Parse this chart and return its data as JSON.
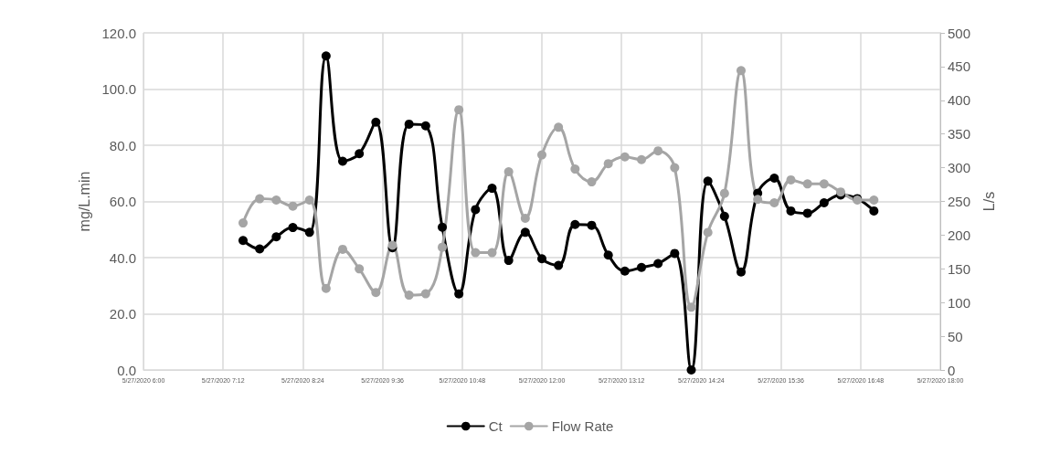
{
  "chart_data": {
    "type": "line",
    "ylabel": "mg/L.min",
    "y2label": "L/s",
    "x": [
      "2020-05-27T07:30",
      "2020-05-27T07:45",
      "2020-05-27T08:00",
      "2020-05-27T08:15",
      "2020-05-27T08:30",
      "2020-05-27T08:45",
      "2020-05-27T09:00",
      "2020-05-27T09:15",
      "2020-05-27T09:30",
      "2020-05-27T09:45",
      "2020-05-27T10:00",
      "2020-05-27T10:15",
      "2020-05-27T10:30",
      "2020-05-27T10:45",
      "2020-05-27T11:00",
      "2020-05-27T11:15",
      "2020-05-27T11:30",
      "2020-05-27T11:45",
      "2020-05-27T12:00",
      "2020-05-27T12:15",
      "2020-05-27T12:30",
      "2020-05-27T12:45",
      "2020-05-27T13:00",
      "2020-05-27T13:15",
      "2020-05-27T13:30",
      "2020-05-27T13:45",
      "2020-05-27T14:00",
      "2020-05-27T14:15",
      "2020-05-27T14:30",
      "2020-05-27T14:45",
      "2020-05-27T15:00",
      "2020-05-27T15:15",
      "2020-05-27T15:30",
      "2020-05-27T15:45",
      "2020-05-27T16:00",
      "2020-05-27T16:15",
      "2020-05-27T16:30",
      "2020-05-27T16:45",
      "2020-05-27T17:00"
    ],
    "series": [
      {
        "name": "Ct",
        "color": "#000000",
        "values": [
          46.1,
          43.1,
          47.4,
          50.7,
          49.0,
          111.8,
          74.3,
          77.0,
          88.2,
          43.5,
          87.5,
          86.9,
          50.8,
          27.1,
          57.1,
          64.7,
          39.0,
          49.0,
          39.6,
          37.2,
          51.8,
          51.5,
          40.9,
          35.2,
          36.5,
          37.9,
          41.5,
          0,
          67.2,
          54.7,
          34.9,
          62.9,
          68.3,
          56.6,
          55.8,
          59.5,
          62.3,
          61.0,
          56.6
        ]
      },
      {
        "name": "Flow Rate",
        "color": "#a5a5a5",
        "axis": "y2",
        "values": [
          218,
          254,
          252,
          243,
          252,
          121,
          179,
          150,
          115,
          185,
          111,
          113,
          182,
          386,
          174,
          174,
          294,
          225,
          319,
          360,
          298,
          279,
          306,
          316,
          312,
          325,
          300,
          93,
          204,
          262,
          444,
          253,
          248,
          282,
          276,
          276,
          264,
          252,
          252
        ]
      }
    ],
    "xlim": [
      "2020-05-27T06:00",
      "2020-05-27T18:00"
    ],
    "xticks": [
      {
        "value": "2020-05-27T06:00",
        "label": "5/27/2020 6:00"
      },
      {
        "value": "2020-05-27T07:12",
        "label": "5/27/2020 7:12"
      },
      {
        "value": "2020-05-27T08:24",
        "label": "5/27/2020 8:24"
      },
      {
        "value": "2020-05-27T09:36",
        "label": "5/27/2020 9:36"
      },
      {
        "value": "2020-05-27T10:48",
        "label": "5/27/2020 10:48"
      },
      {
        "value": "2020-05-27T12:00",
        "label": "5/27/2020 12:00"
      },
      {
        "value": "2020-05-27T13:12",
        "label": "5/27/2020 13:12"
      },
      {
        "value": "2020-05-27T14:24",
        "label": "5/27/2020 14:24"
      },
      {
        "value": "2020-05-27T15:36",
        "label": "5/27/2020 15:36"
      },
      {
        "value": "2020-05-27T16:48",
        "label": "5/27/2020 16:48"
      },
      {
        "value": "2020-05-27T18:00",
        "label": "5/27/2020 18:00"
      }
    ],
    "ylim": [
      0,
      120
    ],
    "yticks": [
      {
        "value": 0,
        "label": "0.0"
      },
      {
        "value": 20,
        "label": "20.0"
      },
      {
        "value": 40,
        "label": "40.0"
      },
      {
        "value": 60,
        "label": "60.0"
      },
      {
        "value": 80,
        "label": "80.0"
      },
      {
        "value": 100,
        "label": "100.0"
      },
      {
        "value": 120,
        "label": "120.0"
      }
    ],
    "y2lim": [
      0,
      500
    ],
    "y2ticks": [
      0,
      50,
      100,
      150,
      200,
      250,
      300,
      350,
      400,
      450,
      500
    ],
    "grid": true,
    "legend": "bottom",
    "marker": "circle",
    "line_style": "solid"
  }
}
